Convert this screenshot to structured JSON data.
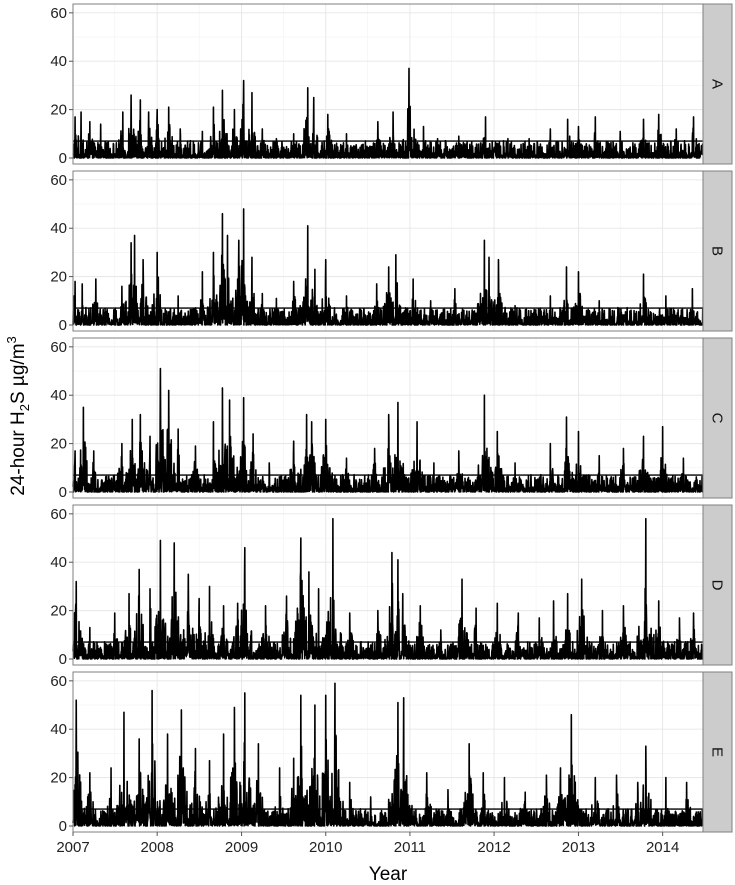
{
  "chart_data": {
    "type": "line",
    "xlabel": "Year",
    "ylabel": {
      "prefix": "24-hour H",
      "sub": "2",
      "middle": "S µg/m",
      "sup": "3"
    },
    "x_ticks": [
      "2007",
      "2008",
      "2009",
      "2010",
      "2011",
      "2012",
      "2013",
      "2014"
    ],
    "xlim": [
      "2007-01-01",
      "2014-06-25"
    ],
    "ylim": [
      0,
      62
    ],
    "y_ticks": [
      0,
      20,
      40,
      60
    ],
    "reference_line": 7,
    "grid": true,
    "line_color": "#000000",
    "strip_color": "#cccccc",
    "panels": [
      {
        "name": "A",
        "peaks": [
          [
            "2007-01-10",
            17
          ],
          [
            "2007-02-05",
            19
          ],
          [
            "2007-03-15",
            15
          ],
          [
            "2007-05-01",
            14
          ],
          [
            "2007-08-05",
            19
          ],
          [
            "2007-09-10",
            26
          ],
          [
            "2007-10-20",
            24
          ],
          [
            "2007-11-25",
            19
          ],
          [
            "2008-01-01",
            20
          ],
          [
            "2008-02-20",
            21
          ],
          [
            "2008-04-10",
            12
          ],
          [
            "2008-07-15",
            11
          ],
          [
            "2008-09-01",
            21
          ],
          [
            "2008-10-10",
            28
          ],
          [
            "2008-12-01",
            20
          ],
          [
            "2009-01-10",
            32
          ],
          [
            "2009-02-15",
            27
          ],
          [
            "2009-04-01",
            12
          ],
          [
            "2009-06-01",
            8
          ],
          [
            "2009-08-15",
            10
          ],
          [
            "2009-10-15",
            29
          ],
          [
            "2009-11-10",
            25
          ],
          [
            "2010-01-10",
            18
          ],
          [
            "2010-04-01",
            10
          ],
          [
            "2010-08-15",
            15
          ],
          [
            "2010-10-20",
            19
          ],
          [
            "2010-12-28",
            37
          ],
          [
            "2011-03-01",
            13
          ],
          [
            "2011-05-01",
            8
          ],
          [
            "2011-08-01",
            9
          ],
          [
            "2011-11-25",
            17
          ],
          [
            "2012-03-01",
            8
          ],
          [
            "2012-06-01",
            8
          ],
          [
            "2012-09-01",
            12
          ],
          [
            "2012-11-15",
            16
          ],
          [
            "2013-01-01",
            13
          ],
          [
            "2013-03-15",
            17
          ],
          [
            "2013-07-01",
            11
          ],
          [
            "2013-10-10",
            16
          ],
          [
            "2013-12-15",
            18
          ],
          [
            "2014-03-01",
            12
          ],
          [
            "2014-05-15",
            17
          ]
        ]
      },
      {
        "name": "B",
        "peaks": [
          [
            "2007-01-10",
            18
          ],
          [
            "2007-02-10",
            17
          ],
          [
            "2007-04-10",
            19
          ],
          [
            "2007-08-01",
            16
          ],
          [
            "2007-09-10",
            34
          ],
          [
            "2007-09-25",
            37
          ],
          [
            "2007-11-01",
            27
          ],
          [
            "2008-01-01",
            30
          ],
          [
            "2008-04-01",
            12
          ],
          [
            "2008-07-15",
            22
          ],
          [
            "2008-09-01",
            30
          ],
          [
            "2008-10-10",
            46
          ],
          [
            "2008-11-01",
            37
          ],
          [
            "2008-12-20",
            35
          ],
          [
            "2009-01-10",
            48
          ],
          [
            "2009-02-15",
            28
          ],
          [
            "2009-04-01",
            13
          ],
          [
            "2009-06-01",
            11
          ],
          [
            "2009-08-15",
            18
          ],
          [
            "2009-10-15",
            41
          ],
          [
            "2009-11-15",
            23
          ],
          [
            "2010-01-01",
            27
          ],
          [
            "2010-04-01",
            12
          ],
          [
            "2010-08-10",
            17
          ],
          [
            "2010-10-01",
            24
          ],
          [
            "2010-11-01",
            29
          ],
          [
            "2011-01-15",
            19
          ],
          [
            "2011-04-01",
            10
          ],
          [
            "2011-07-15",
            15
          ],
          [
            "2011-11-20",
            35
          ],
          [
            "2011-12-10",
            28
          ],
          [
            "2012-01-20",
            27
          ],
          [
            "2012-04-01",
            8
          ],
          [
            "2012-09-01",
            12
          ],
          [
            "2012-11-10",
            24
          ],
          [
            "2013-01-01",
            22
          ],
          [
            "2013-04-01",
            10
          ],
          [
            "2013-10-10",
            21
          ],
          [
            "2014-01-15",
            12
          ],
          [
            "2014-05-10",
            15
          ]
        ]
      },
      {
        "name": "C",
        "peaks": [
          [
            "2007-01-10",
            17
          ],
          [
            "2007-02-15",
            35
          ],
          [
            "2007-04-01",
            17
          ],
          [
            "2007-08-01",
            20
          ],
          [
            "2007-09-15",
            30
          ],
          [
            "2007-10-20",
            32
          ],
          [
            "2007-12-01",
            23
          ],
          [
            "2008-01-15",
            51
          ],
          [
            "2008-02-20",
            42
          ],
          [
            "2008-04-01",
            26
          ],
          [
            "2008-06-15",
            19
          ],
          [
            "2008-09-01",
            29
          ],
          [
            "2008-10-10",
            43
          ],
          [
            "2008-11-10",
            38
          ],
          [
            "2009-01-10",
            39
          ],
          [
            "2009-02-20",
            24
          ],
          [
            "2009-05-01",
            12
          ],
          [
            "2009-08-15",
            21
          ],
          [
            "2009-10-10",
            32
          ],
          [
            "2009-11-01",
            29
          ],
          [
            "2010-01-01",
            30
          ],
          [
            "2010-04-01",
            14
          ],
          [
            "2010-08-01",
            18
          ],
          [
            "2010-10-01",
            32
          ],
          [
            "2010-11-10",
            37
          ],
          [
            "2011-02-01",
            29
          ],
          [
            "2011-04-15",
            12
          ],
          [
            "2011-08-01",
            17
          ],
          [
            "2011-11-20",
            40
          ],
          [
            "2012-01-15",
            25
          ],
          [
            "2012-04-01",
            12
          ],
          [
            "2012-09-01",
            20
          ],
          [
            "2012-11-10",
            31
          ],
          [
            "2013-01-01",
            25
          ],
          [
            "2013-04-01",
            15
          ],
          [
            "2013-07-15",
            18
          ],
          [
            "2013-10-10",
            23
          ],
          [
            "2014-01-01",
            27
          ],
          [
            "2014-04-01",
            14
          ]
        ]
      },
      {
        "name": "D",
        "peaks": [
          [
            "2007-01-15",
            32
          ],
          [
            "2007-03-15",
            13
          ],
          [
            "2007-07-01",
            19
          ],
          [
            "2007-09-01",
            27
          ],
          [
            "2007-10-15",
            37
          ],
          [
            "2007-12-01",
            29
          ],
          [
            "2008-01-15",
            49
          ],
          [
            "2008-03-15",
            48
          ],
          [
            "2008-05-15",
            35
          ],
          [
            "2008-07-01",
            25
          ],
          [
            "2008-08-15",
            30
          ],
          [
            "2008-10-15",
            22
          ],
          [
            "2008-12-15",
            23
          ],
          [
            "2009-01-15",
            46
          ],
          [
            "2009-04-15",
            22
          ],
          [
            "2009-07-15",
            26
          ],
          [
            "2009-09-15",
            50
          ],
          [
            "2009-10-20",
            36
          ],
          [
            "2009-12-01",
            29
          ],
          [
            "2010-02-01",
            58
          ],
          [
            "2010-04-15",
            19
          ],
          [
            "2010-08-15",
            20
          ],
          [
            "2010-10-15",
            44
          ],
          [
            "2010-11-10",
            41
          ],
          [
            "2010-12-01",
            27
          ],
          [
            "2011-02-15",
            22
          ],
          [
            "2011-05-15",
            12
          ],
          [
            "2011-08-15",
            33
          ],
          [
            "2011-10-15",
            21
          ],
          [
            "2012-01-15",
            23
          ],
          [
            "2012-04-15",
            19
          ],
          [
            "2012-07-15",
            17
          ],
          [
            "2012-09-15",
            24
          ],
          [
            "2012-11-15",
            27
          ],
          [
            "2013-01-15",
            33
          ],
          [
            "2013-04-15",
            20
          ],
          [
            "2013-07-15",
            22
          ],
          [
            "2013-10-20",
            58
          ],
          [
            "2013-12-15",
            24
          ],
          [
            "2014-03-15",
            17
          ],
          [
            "2014-05-15",
            19
          ]
        ]
      },
      {
        "name": "E",
        "peaks": [
          [
            "2007-01-15",
            52
          ],
          [
            "2007-03-15",
            22
          ],
          [
            "2007-06-15",
            24
          ],
          [
            "2007-08-10",
            47
          ],
          [
            "2007-10-15",
            36
          ],
          [
            "2007-12-10",
            56
          ],
          [
            "2008-02-15",
            38
          ],
          [
            "2008-04-15",
            48
          ],
          [
            "2008-06-15",
            32
          ],
          [
            "2008-08-15",
            27
          ],
          [
            "2008-10-15",
            38
          ],
          [
            "2008-12-01",
            49
          ],
          [
            "2009-01-15",
            55
          ],
          [
            "2009-03-15",
            34
          ],
          [
            "2009-06-15",
            24
          ],
          [
            "2009-08-15",
            28
          ],
          [
            "2009-09-15",
            54
          ],
          [
            "2009-11-15",
            50
          ],
          [
            "2010-01-01",
            54
          ],
          [
            "2010-02-10",
            59
          ],
          [
            "2010-04-15",
            18
          ],
          [
            "2010-07-15",
            12
          ],
          [
            "2010-10-01",
            11
          ],
          [
            "2010-11-10",
            51
          ],
          [
            "2010-12-05",
            53
          ],
          [
            "2011-03-15",
            22
          ],
          [
            "2011-06-15",
            15
          ],
          [
            "2011-09-15",
            34
          ],
          [
            "2011-11-15",
            22
          ],
          [
            "2012-02-15",
            20
          ],
          [
            "2012-05-15",
            14
          ],
          [
            "2012-08-15",
            21
          ],
          [
            "2012-10-15",
            24
          ],
          [
            "2012-12-01",
            46
          ],
          [
            "2013-03-15",
            20
          ],
          [
            "2013-06-15",
            21
          ],
          [
            "2013-09-15",
            18
          ],
          [
            "2013-10-20",
            33
          ],
          [
            "2014-01-15",
            20
          ],
          [
            "2014-04-15",
            18
          ]
        ]
      }
    ]
  }
}
